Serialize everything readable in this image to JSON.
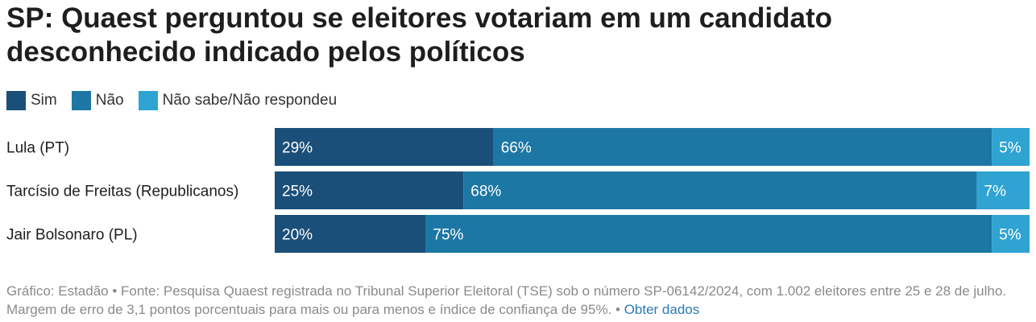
{
  "title": "SP: Quaest perguntou se eleitores votariam em um candidato desconhecido indicado pelos políticos",
  "legend": [
    {
      "label": "Sim",
      "color": "#1a4f7a"
    },
    {
      "label": "Não",
      "color": "#1d77a4"
    },
    {
      "label": "Não sabe/Não respondeu",
      "color": "#2fa3d2"
    }
  ],
  "footer": {
    "text": "Gráfico: Estadão • Fonte: Pesquisa Quaest registrada no Tribunal Superior Eleitoral (TSE) sob o número SP-06142/2024, com 1.002 eleitores entre 25 e 28 de julho. Margem de erro de 3,1 pontos porcentuais para mais ou para menos e índice de confiança de 95%. • ",
    "link": "Obter dados"
  },
  "chart_data": {
    "type": "bar",
    "orientation": "horizontal",
    "stacked": true,
    "categories": [
      "Lula (PT)",
      "Tarcísio de Freitas (Republicanos)",
      "Jair Bolsonaro (PL)"
    ],
    "series": [
      {
        "name": "Sim",
        "values": [
          29,
          25,
          20
        ],
        "labels": [
          "29%",
          "25%",
          "20%"
        ]
      },
      {
        "name": "Não",
        "values": [
          66,
          68,
          75
        ],
        "labels": [
          "66%",
          "68%",
          "75%"
        ]
      },
      {
        "name": "Não sabe/Não respondeu",
        "values": [
          5,
          7,
          5
        ],
        "labels": [
          "5%",
          "7%",
          "5%"
        ]
      }
    ]
  }
}
